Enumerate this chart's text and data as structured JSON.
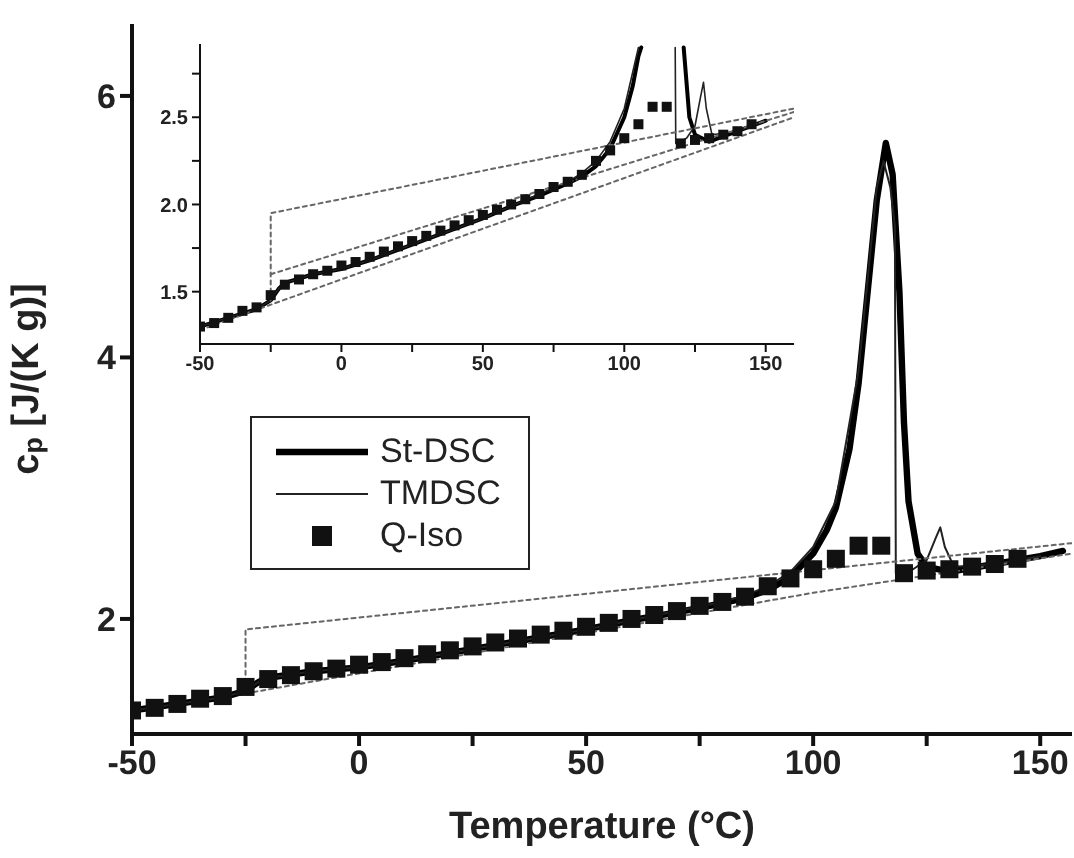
{
  "chart_data": [
    {
      "type": "line",
      "xlabel": "Temperature (°C)",
      "ylabel": "c$_{p}$ [J/(K g)]",
      "xlim": [
        -50,
        157
      ],
      "ylim": [
        1.12,
        6.55
      ],
      "xticks": [
        -50,
        {
          "value": -25,
          "label": null
        },
        0,
        {
          "value": 25,
          "label": null
        },
        50,
        {
          "value": 75,
          "label": null
        },
        100,
        {
          "value": 125,
          "label": null
        },
        150
      ],
      "yticks": [
        2,
        4,
        6
      ],
      "grid": false,
      "legend": "left",
      "series": [
        {
          "name": "St-DSC",
          "type": "line",
          "color": "#000000",
          "line_style": "solid",
          "marker": "none",
          "x": [
            -50,
            -40,
            -30,
            -25,
            -22,
            -20,
            -10,
            0,
            10,
            20,
            30,
            40,
            50,
            60,
            70,
            80,
            85,
            90,
            95,
            100,
            103,
            105,
            108,
            110,
            112,
            114,
            116,
            117.5,
            119,
            120,
            121,
            123,
            125,
            130,
            140,
            150,
            155
          ],
          "values": [
            1.3,
            1.35,
            1.4,
            1.45,
            1.52,
            1.55,
            1.6,
            1.63,
            1.68,
            1.74,
            1.8,
            1.86,
            1.92,
            1.99,
            2.05,
            2.12,
            2.16,
            2.22,
            2.32,
            2.5,
            2.68,
            2.85,
            3.3,
            3.8,
            4.5,
            5.2,
            5.64,
            5.4,
            4.5,
            3.5,
            2.9,
            2.5,
            2.4,
            2.36,
            2.42,
            2.48,
            2.52
          ]
        },
        {
          "name": "TMDSC",
          "type": "line",
          "color": "#222222",
          "line_style": "solid",
          "marker": "none",
          "x": [
            -50,
            -40,
            -30,
            -25,
            -22,
            -20,
            -10,
            0,
            10,
            20,
            30,
            40,
            50,
            60,
            70,
            80,
            85,
            90,
            95,
            100,
            105,
            110,
            114,
            115.5,
            117,
            118,
            118.2,
            122,
            125,
            127,
            128,
            129,
            131,
            140,
            150
          ],
          "values": [
            1.3,
            1.35,
            1.4,
            1.45,
            1.52,
            1.55,
            1.6,
            1.63,
            1.68,
            1.74,
            1.8,
            1.86,
            1.92,
            1.99,
            2.06,
            2.13,
            2.18,
            2.25,
            2.36,
            2.55,
            2.9,
            3.9,
            5.3,
            5.5,
            5.3,
            5.0,
            2.35,
            2.38,
            2.45,
            2.62,
            2.7,
            2.55,
            2.4,
            2.42,
            2.48
          ]
        },
        {
          "name": "Q-Iso",
          "type": "scatter",
          "color": "#111111",
          "marker": "square",
          "x": [
            -50,
            -45,
            -40,
            -35,
            -30,
            -25,
            -20,
            -15,
            -10,
            -5,
            0,
            5,
            10,
            15,
            20,
            25,
            30,
            35,
            40,
            45,
            50,
            55,
            60,
            65,
            70,
            75,
            80,
            85,
            90,
            95,
            100,
            105,
            110,
            115,
            120,
            125,
            130,
            135,
            140,
            145
          ],
          "values": [
            1.3,
            1.32,
            1.35,
            1.39,
            1.41,
            1.48,
            1.54,
            1.57,
            1.6,
            1.62,
            1.65,
            1.67,
            1.7,
            1.73,
            1.76,
            1.79,
            1.82,
            1.85,
            1.88,
            1.91,
            1.94,
            1.97,
            2.0,
            2.03,
            2.06,
            2.1,
            2.13,
            2.17,
            2.25,
            2.31,
            2.38,
            2.46,
            2.56,
            2.56,
            2.35,
            2.37,
            2.38,
            2.4,
            2.42,
            2.46
          ]
        },
        {
          "type": "line",
          "color": "#666666",
          "line_style": "dotted",
          "marker": "none",
          "x": [
            -25,
            -25,
            157
          ],
          "values": [
            1.45,
            1.92,
            2.58
          ]
        },
        {
          "type": "line",
          "color": "#666666",
          "line_style": "dotted",
          "marker": "none",
          "x": [
            -25,
            100,
            157
          ],
          "values": [
            1.43,
            2.2,
            2.5
          ]
        }
      ]
    },
    {
      "type": "line",
      "xlim": [
        -50,
        160
      ],
      "ylim": [
        1.2,
        2.92
      ],
      "xticks": [
        -50,
        {
          "value": -25,
          "label": null
        },
        0,
        {
          "value": 25,
          "label": null
        },
        50,
        {
          "value": 75,
          "label": null
        },
        100,
        {
          "value": 125,
          "label": null
        },
        150
      ],
      "yticks": [
        {
          "value": 1.5,
          "label": "1.5"
        },
        {
          "value": 1.75,
          "label": null
        },
        {
          "value": 2,
          "label": "2.0"
        },
        {
          "value": 2.25,
          "label": null
        },
        {
          "value": 2.5,
          "label": "2.5"
        },
        {
          "value": 2.75,
          "label": null
        }
      ],
      "grid": false,
      "series": [
        {
          "type": "line",
          "color": "#000000",
          "line_style": "solid",
          "marker": "none",
          "x": [
            -50,
            -40,
            -30,
            -25,
            -22,
            -20,
            -10,
            0,
            10,
            20,
            30,
            40,
            50,
            60,
            70,
            80,
            85,
            90,
            95,
            100,
            103,
            105,
            106,
            110,
            121,
            123,
            125,
            130,
            140,
            150
          ],
          "values": [
            1.3,
            1.35,
            1.4,
            1.45,
            1.52,
            1.55,
            1.6,
            1.63,
            1.68,
            1.74,
            1.8,
            1.86,
            1.92,
            1.99,
            2.05,
            2.12,
            2.16,
            2.22,
            2.32,
            2.5,
            2.68,
            2.85,
            2.9,
            null,
            2.9,
            2.5,
            2.4,
            2.36,
            2.42,
            2.48
          ]
        },
        {
          "type": "line",
          "color": "#222222",
          "line_style": "solid",
          "marker": "none",
          "x": [
            -50,
            -40,
            -30,
            -25,
            -22,
            -20,
            -10,
            0,
            10,
            20,
            30,
            40,
            50,
            60,
            70,
            80,
            85,
            90,
            95,
            100,
            105,
            110,
            118,
            118.2,
            122,
            125,
            127,
            128,
            129,
            131,
            140,
            150
          ],
          "values": [
            1.3,
            1.35,
            1.4,
            1.45,
            1.52,
            1.55,
            1.6,
            1.63,
            1.68,
            1.74,
            1.8,
            1.86,
            1.92,
            1.99,
            2.06,
            2.13,
            2.18,
            2.25,
            2.36,
            2.55,
            2.9,
            null,
            2.9,
            2.35,
            2.38,
            2.45,
            2.62,
            2.7,
            2.55,
            2.4,
            2.42,
            2.48
          ]
        },
        {
          "type": "scatter",
          "color": "#111111",
          "marker": "square",
          "x": [
            -50,
            -45,
            -40,
            -35,
            -30,
            -25,
            -20,
            -15,
            -10,
            -5,
            0,
            5,
            10,
            15,
            20,
            25,
            30,
            35,
            40,
            45,
            50,
            55,
            60,
            65,
            70,
            75,
            80,
            85,
            90,
            95,
            100,
            105,
            110,
            115,
            120,
            125,
            130,
            135,
            140,
            145
          ],
          "values": [
            1.3,
            1.32,
            1.35,
            1.39,
            1.41,
            1.48,
            1.54,
            1.57,
            1.6,
            1.62,
            1.65,
            1.67,
            1.7,
            1.73,
            1.76,
            1.79,
            1.82,
            1.85,
            1.88,
            1.91,
            1.94,
            1.97,
            2.0,
            2.03,
            2.06,
            2.1,
            2.13,
            2.17,
            2.25,
            2.31,
            2.38,
            2.46,
            2.56,
            2.56,
            2.35,
            2.37,
            2.38,
            2.4,
            2.42,
            2.46
          ]
        },
        {
          "type": "line",
          "color": "#666666",
          "line_style": "dotted",
          "marker": "none",
          "x": [
            -25,
            -25,
            160
          ],
          "values": [
            1.45,
            1.95,
            2.55
          ]
        },
        {
          "type": "line",
          "color": "#666666",
          "line_style": "dotted",
          "marker": "none",
          "x": [
            -25,
            160
          ],
          "values": [
            1.6,
            2.53
          ]
        },
        {
          "type": "line",
          "color": "#666666",
          "line_style": "dotted",
          "marker": "none",
          "x": [
            -50,
            160
          ],
          "values": [
            1.28,
            2.5
          ]
        }
      ]
    }
  ]
}
